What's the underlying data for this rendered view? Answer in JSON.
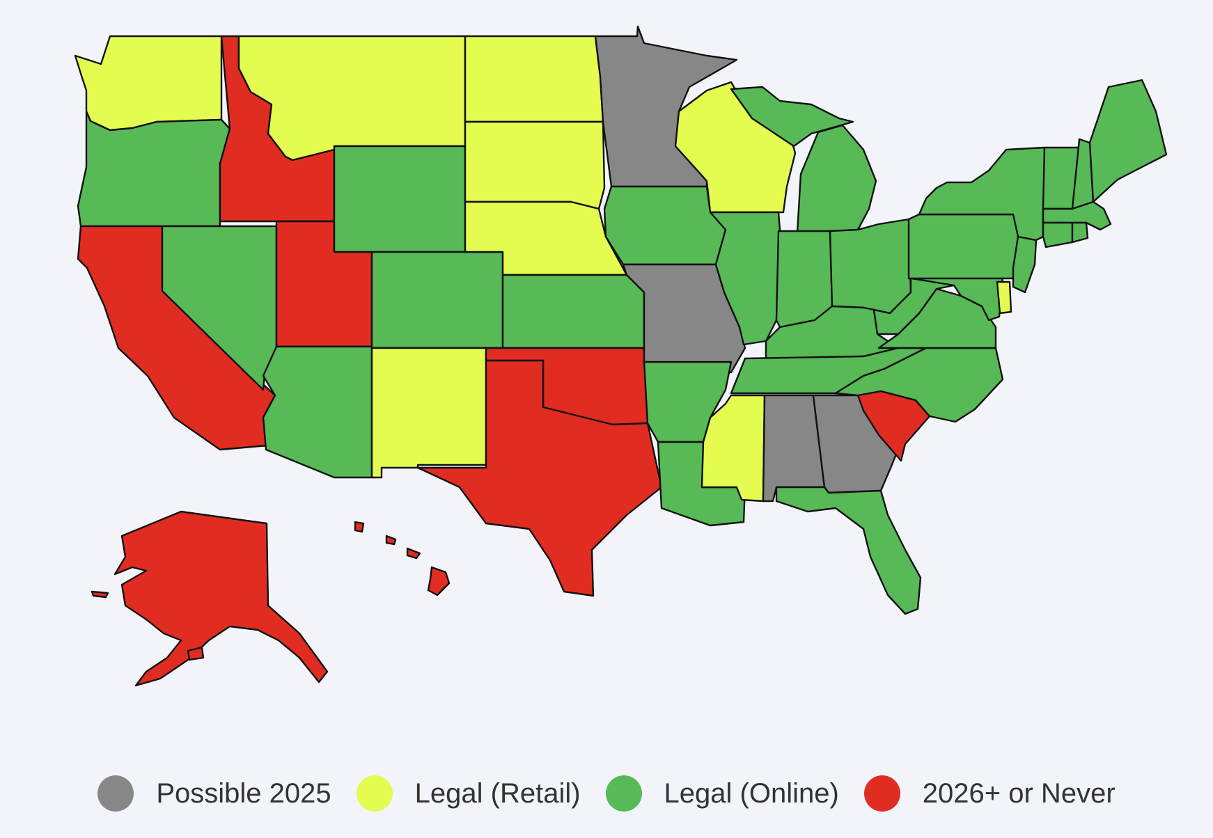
{
  "colors": {
    "possible_2025": "#878787",
    "legal_retail": "#e4fb50",
    "legal_online": "#58b957",
    "never": "#e12c21"
  },
  "legend": [
    {
      "key": "possible_2025",
      "label": "Possible 2025",
      "color": "#878787"
    },
    {
      "key": "legal_retail",
      "label": "Legal (Retail)",
      "color": "#e4fb50"
    },
    {
      "key": "legal_online",
      "label": "Legal (Online)",
      "color": "#58b957"
    },
    {
      "key": "never",
      "label": "2026+ or Never",
      "color": "#e12c21"
    }
  ],
  "states": {
    "WA": "legal_retail",
    "OR": "legal_online",
    "CA": "never",
    "ID": "never",
    "NV": "legal_online",
    "UT": "never",
    "AZ": "legal_online",
    "MT": "legal_retail",
    "WY": "legal_online",
    "CO": "legal_online",
    "NM": "legal_retail",
    "ND": "legal_retail",
    "SD": "legal_retail",
    "NE": "legal_retail",
    "KS": "legal_online",
    "OK": "never",
    "TX": "never",
    "MN": "possible_2025",
    "IA": "legal_online",
    "MO": "possible_2025",
    "AR": "legal_online",
    "LA": "legal_online",
    "WI": "legal_retail",
    "IL": "legal_online",
    "MI": "legal_online",
    "IN": "legal_online",
    "OH": "legal_online",
    "KY": "legal_online",
    "TN": "legal_online",
    "MS": "legal_retail",
    "AL": "possible_2025",
    "GA": "possible_2025",
    "FL": "legal_online",
    "SC": "never",
    "NC": "legal_online",
    "VA": "legal_online",
    "WV": "legal_online",
    "MD": "legal_online",
    "DE": "legal_retail",
    "PA": "legal_online",
    "NJ": "legal_online",
    "NY": "legal_online",
    "VT": "legal_online",
    "NH": "legal_online",
    "ME": "legal_online",
    "MA": "legal_online",
    "CT": "legal_online",
    "RI": "legal_online",
    "AK": "never",
    "HI": "never"
  }
}
